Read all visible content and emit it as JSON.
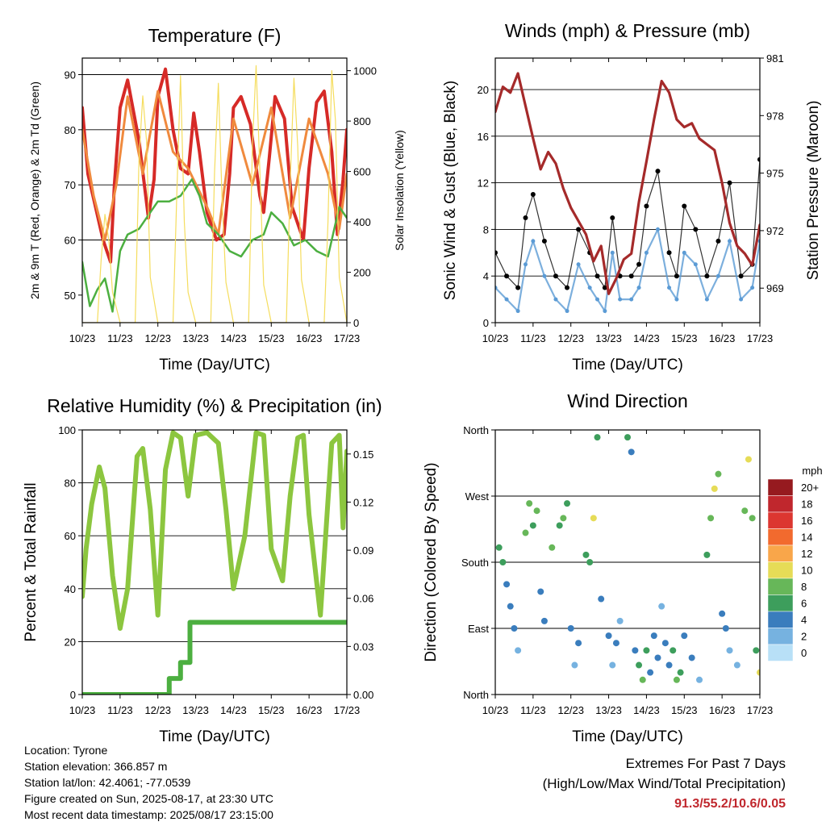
{
  "info": {
    "location": "Location: Tyrone",
    "elevation": "Station elevation: 366.857 m",
    "latlon": "Station lat/lon: 42.4061; -77.0539",
    "created": "Figure created on Sun, 2025-08-17, at 23:30 UTC",
    "recent": "Most recent data timestamp: 2025/08/17 23:15:00"
  },
  "extremes": {
    "line1": "Extremes For Past 7 Days",
    "line2": "(High/Low/Max Wind/Total Precipitation)",
    "values": "91.3/55.2/10.6/0.05"
  },
  "chart_data": [
    {
      "type": "line",
      "title": "Temperature (F)",
      "xlabel": "Time (Day/UTC)",
      "ylabel": "2m & 9m T (Red, Orange) & 2m Td (Green)",
      "ylabel_right": "Solar Insolation (Yellow)",
      "x_ticks": [
        "10/23",
        "11/23",
        "12/23",
        "13/23",
        "14/23",
        "15/23",
        "16/23",
        "17/23"
      ],
      "ylim": [
        45,
        93
      ],
      "y_ticks": [
        50,
        60,
        70,
        80,
        90
      ],
      "y2lim": [
        0,
        1050
      ],
      "y2_ticks": [
        0,
        200,
        400,
        600,
        800,
        1000
      ],
      "grid": true,
      "series": [
        {
          "color": "#d62a27",
          "axis": "left",
          "x": [
            0,
            0.15,
            0.35,
            0.55,
            0.75,
            0.85,
            1.0,
            1.2,
            1.5,
            1.75,
            1.9,
            2.0,
            2.2,
            2.4,
            2.6,
            2.8,
            2.95,
            3.1,
            3.3,
            3.55,
            3.75,
            3.9,
            4.0,
            4.2,
            4.45,
            4.7,
            4.8,
            4.95,
            5.1,
            5.35,
            5.55,
            5.75,
            5.85,
            6.0,
            6.2,
            6.4,
            6.6,
            6.75,
            6.9,
            7.0
          ],
          "y": [
            84,
            72,
            66,
            60,
            56,
            70,
            84,
            89,
            78,
            64,
            71,
            86,
            91,
            80,
            73,
            72,
            83,
            76,
            65,
            60,
            61,
            72,
            84,
            86,
            81,
            68,
            65,
            75,
            86,
            82,
            66,
            62,
            60,
            73,
            85,
            87,
            76,
            61,
            71,
            80
          ]
        },
        {
          "color": "#f08a3e",
          "axis": "left",
          "x": [
            0,
            0.3,
            0.6,
            0.9,
            1.2,
            1.6,
            2.0,
            2.4,
            2.8,
            3.3,
            3.6,
            4.0,
            4.5,
            5.0,
            5.5,
            6.0,
            6.5,
            6.8,
            7.0
          ],
          "y": [
            80,
            68,
            60,
            70,
            86,
            72,
            87,
            76,
            73,
            66,
            61,
            82,
            70,
            84,
            64,
            82,
            72,
            62,
            72
          ]
        },
        {
          "color": "#4caf40",
          "axis": "left",
          "x": [
            0,
            0.2,
            0.4,
            0.6,
            0.8,
            1.0,
            1.2,
            1.5,
            1.8,
            2.0,
            2.3,
            2.6,
            2.9,
            3.1,
            3.3,
            3.6,
            3.9,
            4.2,
            4.5,
            4.8,
            5.0,
            5.3,
            5.6,
            5.9,
            6.2,
            6.5,
            6.8,
            7.0
          ],
          "y": [
            56,
            48,
            51,
            53,
            47,
            58,
            61,
            62,
            65,
            67,
            67,
            68,
            71,
            68,
            63,
            61,
            58,
            57,
            60,
            61,
            65,
            63,
            59,
            60,
            58,
            57,
            66,
            64
          ]
        },
        {
          "color": "#f5dd5e",
          "axis": "right",
          "x": [
            0,
            0.4,
            0.5,
            0.6,
            0.7,
            0.8,
            1.0,
            1.4,
            1.5,
            1.6,
            1.7,
            1.8,
            2.0,
            2.4,
            2.5,
            2.6,
            2.7,
            2.8,
            3.0,
            3.4,
            3.5,
            3.6,
            3.7,
            3.8,
            4.0,
            4.4,
            4.5,
            4.6,
            4.7,
            4.8,
            5.0,
            5.4,
            5.5,
            5.6,
            5.7,
            5.8,
            6.0,
            6.4,
            6.5,
            6.6,
            6.7,
            6.8,
            7.0
          ],
          "y": [
            0,
            0,
            250,
            430,
            330,
            120,
            0,
            0,
            650,
            900,
            720,
            180,
            0,
            0,
            500,
            980,
            400,
            120,
            0,
            0,
            600,
            950,
            480,
            160,
            0,
            0,
            700,
            1020,
            600,
            150,
            0,
            0,
            550,
            970,
            700,
            170,
            0,
            0,
            400,
            1000,
            800,
            180,
            0
          ]
        }
      ]
    },
    {
      "type": "scatter",
      "title": "Winds (mph) & Pressure (mb)",
      "xlabel": "Time (Day/UTC)",
      "ylabel": "Sonic Wind & Gust (Blue, Black)",
      "ylabel_right": "Station Pressure (Maroon)",
      "x_ticks": [
        "10/23",
        "11/23",
        "12/23",
        "13/23",
        "14/23",
        "15/23",
        "16/23",
        "17/23"
      ],
      "ylim": [
        0,
        22.7
      ],
      "y_ticks": [
        0,
        4,
        8,
        12,
        16,
        20
      ],
      "y2lim": [
        967.2,
        981
      ],
      "y2_ticks": [
        969,
        972,
        975,
        978,
        981
      ],
      "grid": true,
      "series": [
        {
          "color": "#000000",
          "axis": "left",
          "kind": "gust",
          "x": [
            0,
            0.3,
            0.6,
            0.8,
            1.0,
            1.3,
            1.6,
            1.9,
            2.2,
            2.5,
            2.7,
            2.9,
            3.1,
            3.3,
            3.6,
            3.8,
            4.0,
            4.3,
            4.6,
            4.8,
            5.0,
            5.3,
            5.6,
            5.9,
            6.2,
            6.5,
            6.8,
            7.0
          ],
          "y": [
            6,
            4,
            3,
            9,
            11,
            7,
            4,
            3,
            8,
            6,
            4,
            3,
            9,
            4,
            4,
            5,
            10,
            13,
            6,
            4,
            10,
            8,
            4,
            7,
            12,
            4,
            5,
            14
          ]
        },
        {
          "color": "#5b9bd5",
          "axis": "left",
          "kind": "wind",
          "x": [
            0,
            0.3,
            0.6,
            0.8,
            1.0,
            1.3,
            1.6,
            1.9,
            2.2,
            2.5,
            2.7,
            2.9,
            3.1,
            3.3,
            3.6,
            3.8,
            4.0,
            4.3,
            4.6,
            4.8,
            5.0,
            5.3,
            5.6,
            5.9,
            6.2,
            6.5,
            6.8,
            7.0
          ],
          "y": [
            3,
            2,
            1,
            5,
            7,
            4,
            2,
            1,
            5,
            3,
            2,
            1,
            6,
            2,
            2,
            3,
            6,
            8,
            3,
            2,
            6,
            5,
            2,
            4,
            7,
            2,
            3,
            7
          ]
        },
        {
          "color": "#a52a2a",
          "axis": "right",
          "kind": "pressure",
          "x": [
            0,
            0.2,
            0.4,
            0.6,
            0.8,
            1.0,
            1.2,
            1.4,
            1.6,
            1.8,
            2.0,
            2.2,
            2.4,
            2.6,
            2.8,
            3.0,
            3.2,
            3.4,
            3.6,
            3.8,
            4.0,
            4.2,
            4.4,
            4.6,
            4.8,
            5.0,
            5.2,
            5.4,
            5.6,
            5.8,
            6.0,
            6.2,
            6.4,
            6.6,
            6.8,
            7.0
          ],
          "y": [
            978.2,
            979.5,
            979.2,
            980.2,
            978.5,
            976.8,
            975.2,
            976.1,
            975.5,
            974.2,
            973.2,
            972.5,
            971.8,
            970.4,
            971.2,
            968.7,
            969.5,
            970.5,
            970.8,
            973.5,
            975.6,
            977.8,
            979.8,
            979.2,
            977.8,
            977.4,
            977.6,
            976.8,
            976.5,
            976.2,
            974.5,
            972.4,
            971.2,
            970.8,
            970.2,
            972.3
          ]
        }
      ]
    },
    {
      "type": "line",
      "title": "Relative Humidity (%) & Precipitation (in)",
      "xlabel": "Time (Day/UTC)",
      "ylabel": "Percent & Total Rainfall",
      "x_ticks": [
        "10/23",
        "11/23",
        "12/23",
        "13/23",
        "14/23",
        "15/23",
        "16/23",
        "17/23"
      ],
      "ylim": [
        0,
        100
      ],
      "y_ticks": [
        0,
        20,
        40,
        60,
        80,
        100
      ],
      "y2lim": [
        0,
        0.165
      ],
      "y2_ticks": [
        "0.00",
        "0.03",
        "0.06",
        "0.09",
        "0.12",
        "0.15"
      ],
      "grid": true,
      "series": [
        {
          "color": "#8cc63f",
          "axis": "left",
          "x": [
            0,
            0.1,
            0.25,
            0.45,
            0.6,
            0.8,
            1.0,
            1.2,
            1.45,
            1.6,
            1.8,
            2.0,
            2.2,
            2.4,
            2.6,
            2.8,
            3.0,
            3.3,
            3.6,
            3.8,
            4.0,
            4.3,
            4.6,
            4.8,
            5.0,
            5.3,
            5.5,
            5.7,
            5.85,
            6.0,
            6.3,
            6.6,
            6.8,
            6.9,
            7.0
          ],
          "y": [
            37,
            55,
            72,
            86,
            78,
            45,
            25,
            40,
            90,
            93,
            70,
            30,
            85,
            99,
            97,
            75,
            98,
            99,
            95,
            70,
            40,
            60,
            99,
            98,
            55,
            43,
            75,
            97,
            98,
            68,
            30,
            95,
            98,
            63,
            92
          ]
        },
        {
          "color": "#4caf40",
          "axis": "right",
          "x": [
            0,
            2.3,
            2.3,
            2.6,
            2.6,
            2.85,
            2.85,
            7.0
          ],
          "y": [
            0,
            0,
            0.01,
            0.01,
            0.02,
            0.02,
            0.045,
            0.045
          ]
        }
      ]
    },
    {
      "type": "scatter",
      "title": "Wind Direction",
      "xlabel": "Time (Day/UTC)",
      "ylabel": "Direction (Colored By Speed)",
      "x_ticks": [
        "10/23",
        "11/23",
        "12/23",
        "13/23",
        "14/23",
        "15/23",
        "16/23",
        "17/23"
      ],
      "ylim": [
        0,
        360
      ],
      "y_ticks": [
        "North",
        "East",
        "South",
        "West",
        "North"
      ],
      "grid": true,
      "legend": {
        "title": "mph",
        "labels": [
          "20+",
          "18",
          "16",
          "14",
          "12",
          "10",
          "8",
          "6",
          "4",
          "2",
          "0"
        ],
        "colors": [
          "#961a1f",
          "#c0272d",
          "#dc3630",
          "#f26a2e",
          "#f9a64a",
          "#e6dc57",
          "#67b759",
          "#3d9e5c",
          "#3a7dbd",
          "#76b2e0",
          "#b8e0f7"
        ]
      },
      "series": [
        {
          "x": [
            0.1,
            0.2,
            0.3,
            0.4,
            0.5,
            0.6,
            0.8,
            0.9,
            1.0,
            1.1,
            1.2,
            1.3,
            1.5,
            1.7,
            1.8,
            1.9,
            2.0,
            2.1,
            2.2,
            2.4,
            2.5,
            2.6,
            2.7,
            2.8,
            3.0,
            3.1,
            3.2,
            3.3,
            3.5,
            3.6,
            3.7,
            3.8,
            3.9,
            4.0,
            4.1,
            4.2,
            4.3,
            4.4,
            4.5,
            4.6,
            4.7,
            4.8,
            4.9,
            5.0,
            5.2,
            5.4,
            5.6,
            5.7,
            5.8,
            5.9,
            6.0,
            6.1,
            6.2,
            6.4,
            6.6,
            6.7,
            6.8,
            6.9,
            7.0
          ],
          "y": [
            200,
            180,
            150,
            120,
            90,
            60,
            220,
            260,
            230,
            250,
            140,
            100,
            200,
            230,
            240,
            260,
            90,
            40,
            70,
            190,
            180,
            240,
            350,
            130,
            80,
            40,
            70,
            100,
            350,
            330,
            60,
            40,
            20,
            60,
            30,
            80,
            50,
            120,
            70,
            40,
            60,
            20,
            30,
            80,
            50,
            20,
            190,
            240,
            280,
            300,
            110,
            90,
            60,
            40,
            250,
            320,
            240,
            60,
            30
          ],
          "speed": [
            6,
            5,
            4,
            3,
            3,
            2,
            8,
            8,
            6,
            7,
            4,
            3,
            7,
            6,
            8,
            6,
            3,
            2,
            3,
            6,
            5,
            10,
            6,
            4,
            3,
            2,
            3,
            2,
            5,
            4,
            4,
            6,
            7,
            5,
            3,
            4,
            3,
            2,
            3,
            4,
            5,
            7,
            6,
            4,
            3,
            2,
            6,
            8,
            10,
            7,
            4,
            3,
            2,
            2,
            7,
            9,
            8,
            6,
            10
          ]
        }
      ]
    }
  ]
}
